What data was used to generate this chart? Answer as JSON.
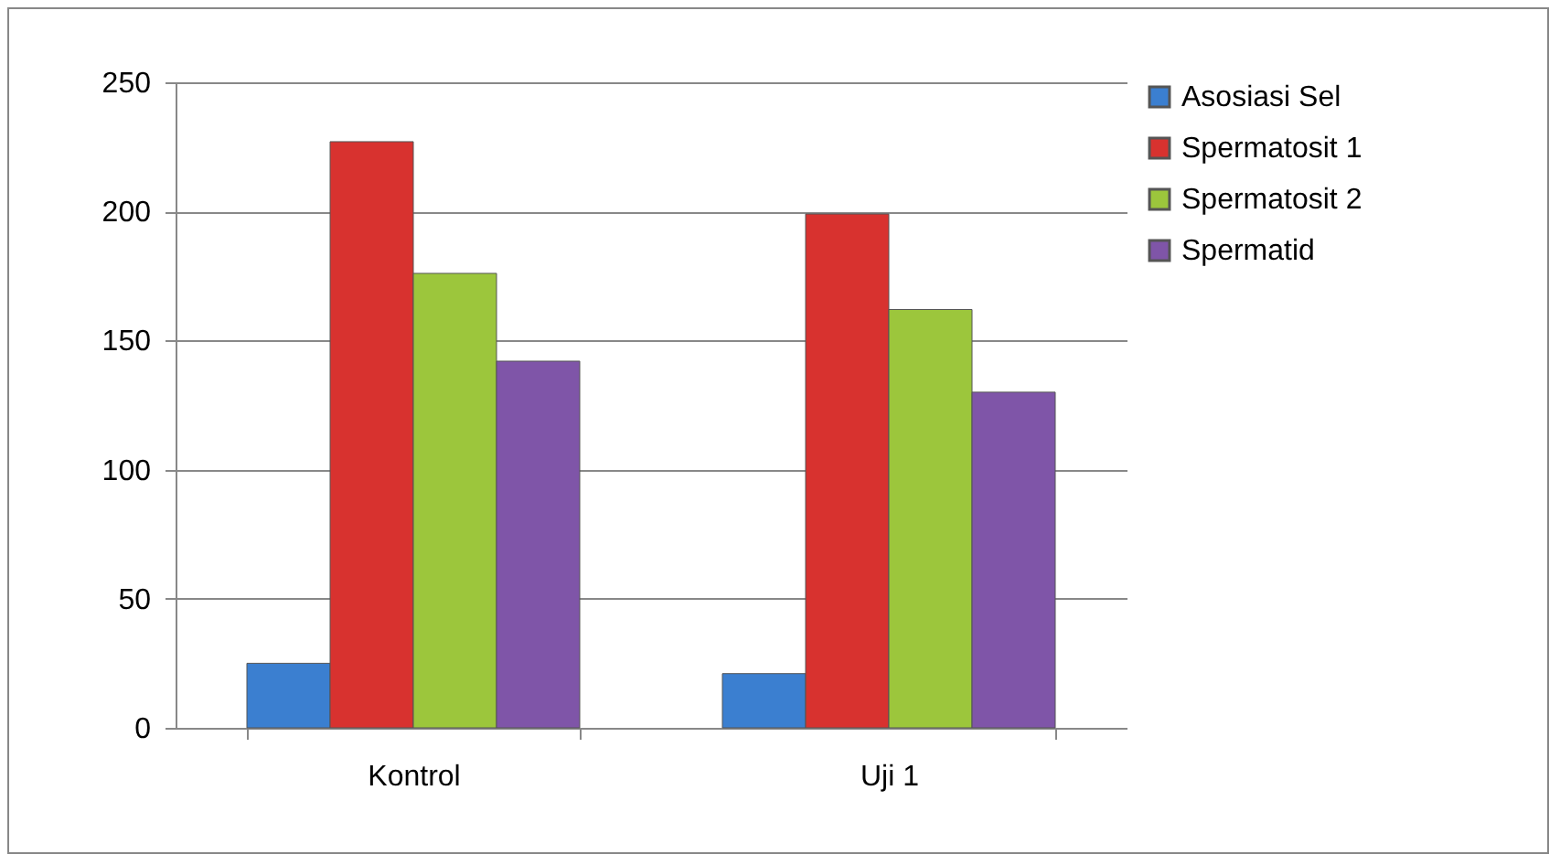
{
  "chart_data": {
    "type": "bar",
    "categories": [
      "Kontrol",
      "Uji 1"
    ],
    "series": [
      {
        "name": "Asosiasi Sel",
        "color": "#3b7fd0",
        "values": [
          25,
          21
        ]
      },
      {
        "name": "Spermatosit 1",
        "color": "#d8322f",
        "values": [
          227,
          199
        ]
      },
      {
        "name": "Spermatosit 2",
        "color": "#9cc63c",
        "values": [
          176,
          162
        ]
      },
      {
        "name": "Spermatid",
        "color": "#7f55a8",
        "values": [
          142,
          130
        ]
      }
    ],
    "ylim": [
      0,
      250
    ],
    "yticks": [
      0,
      50,
      100,
      150,
      200,
      250
    ],
    "grid": "y",
    "legend": "right"
  }
}
